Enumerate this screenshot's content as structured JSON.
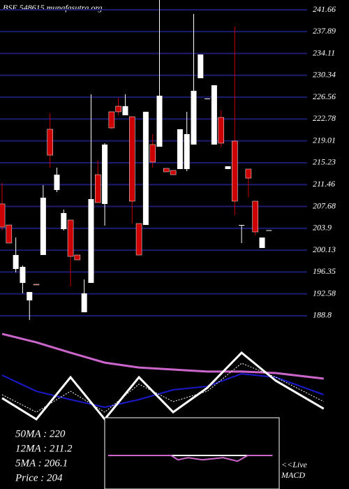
{
  "chart_data": [
    {
      "type": "candlestick",
      "title": "BSE 548615 munafasutra.org",
      "open": [
        208.11,
        204.48,
        196.88,
        194.47,
        191.45,
        194.23,
        199.29,
        221.02,
        210.52,
        203.76,
        205.33,
        199.29,
        189.4,
        194.47,
        213.17,
        208.11,
        224.04,
        225.0,
        223.43,
        223.19,
        204.73,
        204.48,
        218.37,
        218.0,
        214.26,
        213.9,
        214.14,
        214.14,
        218.37,
        229.83,
        226.21,
        218.37,
        223.07,
        214.14,
        218.97,
        204.36,
        214.14,
        208.59,
        200.5,
        203.52
      ],
      "high": [
        211.73,
        204.48,
        202.31,
        197.48,
        192.9,
        194.23,
        211.36,
        223.8,
        214.38,
        207.14,
        205.33,
        199.29,
        195.07,
        227.06,
        215.59,
        218.61,
        224.04,
        226.45,
        227.06,
        223.19,
        204.73,
        224.04,
        220.18,
        243.35,
        214.26,
        213.9,
        221.02,
        224.04,
        240.94,
        233.94,
        226.33,
        228.62,
        224.28,
        214.62,
        238.76,
        204.48,
        214.14,
        208.59,
        202.31,
        203.58
      ],
      "low": [
        203.52,
        201.35,
        196.28,
        192.66,
        188.07,
        194.11,
        199.29,
        214.38,
        210.16,
        203.52,
        193.86,
        198.45,
        189.4,
        194.47,
        208.35,
        204.36,
        221.02,
        223.43,
        223.43,
        204.73,
        199.29,
        204.48,
        214.38,
        218.0,
        213.66,
        213.17,
        214.14,
        213.78,
        218.37,
        229.83,
        226.21,
        218.37,
        218.0,
        214.14,
        206.17,
        201.35,
        209.31,
        202.67,
        200.5,
        203.52
      ],
      "close": [
        204.12,
        201.35,
        199.29,
        197.24,
        192.9,
        194.11,
        209.19,
        216.55,
        213.17,
        206.54,
        199.05,
        198.45,
        192.66,
        208.95,
        208.35,
        218.37,
        221.26,
        224.04,
        225.0,
        208.59,
        199.29,
        224.04,
        215.35,
        226.81,
        213.66,
        213.17,
        221.02,
        220.18,
        227.66,
        233.94,
        226.33,
        228.62,
        218.61,
        214.62,
        208.59,
        204.48,
        212.57,
        203.28,
        202.31,
        203.58
      ],
      "up_color": "#ffffff",
      "down_color": "#cc0000",
      "grid_color": "#1c1c70",
      "xlim": [
        -0.31,
        50.7
      ],
      "ylim": [
        186.62,
        243.35
      ],
      "yticks": [
        241.66,
        237.89,
        234.11,
        230.34,
        226.56,
        222.78,
        219.01,
        215.23,
        211.46,
        207.68,
        203.9,
        200.13,
        196.35,
        192.58,
        188.8
      ],
      "grid": true
    },
    {
      "type": "line",
      "annotations": [
        "50MA : 220",
        "12MA : 211.2",
        "5MA : 206.1",
        "Price  : 204"
      ],
      "x": [
        0,
        5,
        10,
        15,
        20,
        25,
        30,
        35,
        40,
        47
      ],
      "xlim": [
        -0.31,
        50.7
      ],
      "ylim": [
        0,
        100
      ],
      "series": [
        {
          "color": "#cc66cc",
          "width": 3,
          "values": [
            98.7,
            93.3,
            86.7,
            80.4,
            77.3,
            76.0,
            74.7,
            74.7,
            73.8,
            70.2
          ]
        },
        {
          "color": "#1a1acc",
          "width": 2,
          "values": [
            72.4,
            62.2,
            56.9,
            52.0,
            56.9,
            63.1,
            65.3,
            73.3,
            71.1,
            60.0
          ]
        },
        {
          "color": "#ffffff",
          "width": 1,
          "dash": "2,2",
          "values": [
            60,
            48.9,
            62.2,
            48.9,
            66.7,
            55.6,
            62.2,
            80,
            71.1,
            55.6
          ]
        },
        {
          "color": "#ffffff",
          "width": 3,
          "values": [
            57.8,
            44.4,
            71.1,
            44.4,
            71.1,
            48.9,
            64.4,
            86.7,
            68.9,
            51.1
          ]
        }
      ]
    },
    {
      "type": "line",
      "annotations": [
        "<<Live",
        "MACD"
      ],
      "x": [
        15.5,
        24.7,
        25.7,
        27.2,
        29.3,
        32.3,
        34.4,
        35.9,
        39.5
      ],
      "xlim": [
        -0.31,
        50.7
      ],
      "ylim": [
        -1,
        1
      ],
      "series": [
        {
          "color": "#ffffff",
          "width": 2,
          "values": [
            -0.06,
            -0.06,
            -0.06,
            -0.06,
            -0.06,
            -0.06,
            -0.06,
            -0.06,
            -0.06
          ]
        },
        {
          "color": "#cc66cc",
          "width": 2,
          "values": [
            -0.06,
            -0.06,
            -0.18,
            -0.12,
            -0.18,
            -0.12,
            -0.22,
            -0.06,
            -0.06
          ]
        }
      ]
    }
  ]
}
